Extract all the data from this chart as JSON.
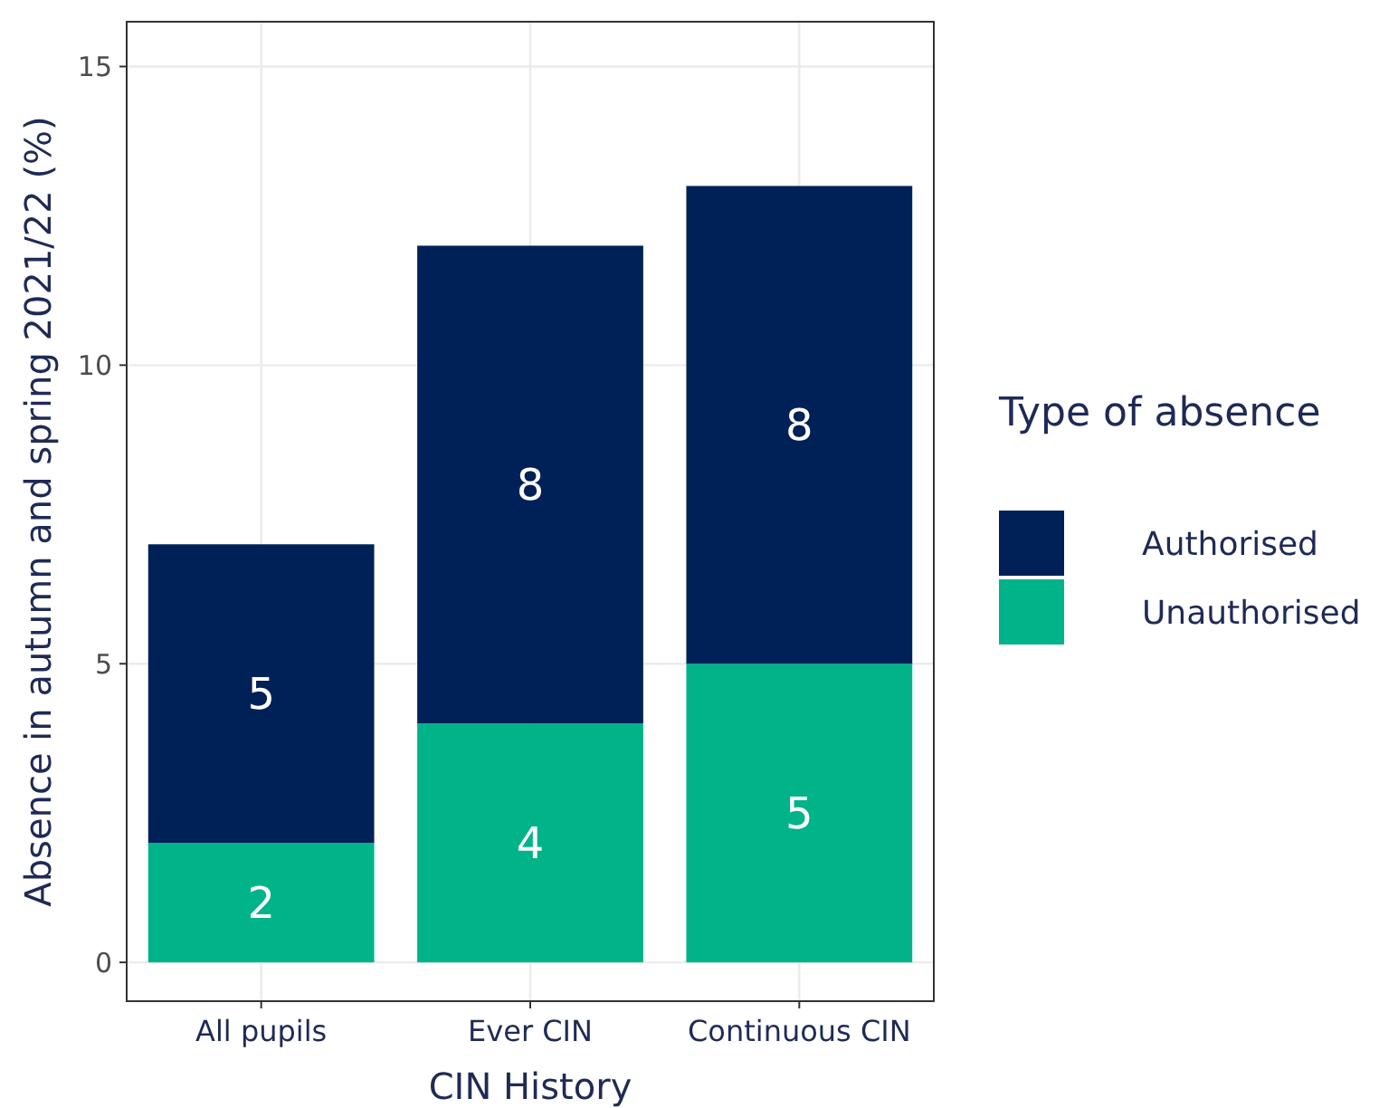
{
  "chart_data": {
    "type": "bar",
    "stacked": true,
    "xlabel": "CIN History",
    "ylabel": "Absence in autumn and spring 2021/22 (%)",
    "legend_title": "Type of absence",
    "categories": [
      "All pupils",
      "Ever CIN",
      "Continuous CIN"
    ],
    "series": [
      {
        "name": "Unauthorised",
        "color": "#00b388",
        "values": [
          2,
          4,
          5
        ]
      },
      {
        "name": "Authorised",
        "color": "#002157",
        "values": [
          5,
          8,
          8
        ]
      }
    ],
    "ylim": [
      -0.65,
      15.75
    ],
    "yticks": [
      0,
      5,
      10,
      15
    ],
    "grid": true,
    "legend": "right",
    "data_labels": true
  }
}
